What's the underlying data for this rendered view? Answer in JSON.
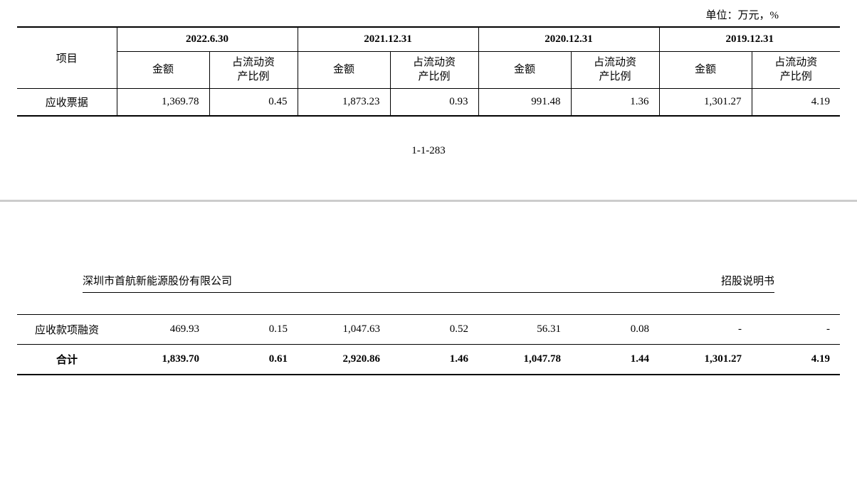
{
  "unit_label": "单位：万元，%",
  "table1": {
    "header": {
      "item_label": "项目",
      "periods": [
        "2022.6.30",
        "2021.12.31",
        "2020.12.31",
        "2019.12.31"
      ],
      "sub_amount": "金额",
      "sub_ratio": "占流动资\n产比例"
    },
    "row1": {
      "label": "应收票据",
      "values": [
        "1,369.78",
        "0.45",
        "1,873.23",
        "0.93",
        "991.48",
        "1.36",
        "1,301.27",
        "4.19"
      ]
    }
  },
  "page_number": "1-1-283",
  "page2_header": {
    "left": "深圳市首航新能源股份有限公司",
    "right": "招股说明书"
  },
  "table2": {
    "row1": {
      "label": "应收款项融资",
      "values": [
        "469.93",
        "0.15",
        "1,047.63",
        "0.52",
        "56.31",
        "0.08",
        "-",
        "-"
      ]
    },
    "row2": {
      "label": "合计",
      "values": [
        "1,839.70",
        "0.61",
        "2,920.86",
        "1.46",
        "1,047.78",
        "1.44",
        "1,301.27",
        "4.19"
      ]
    }
  }
}
